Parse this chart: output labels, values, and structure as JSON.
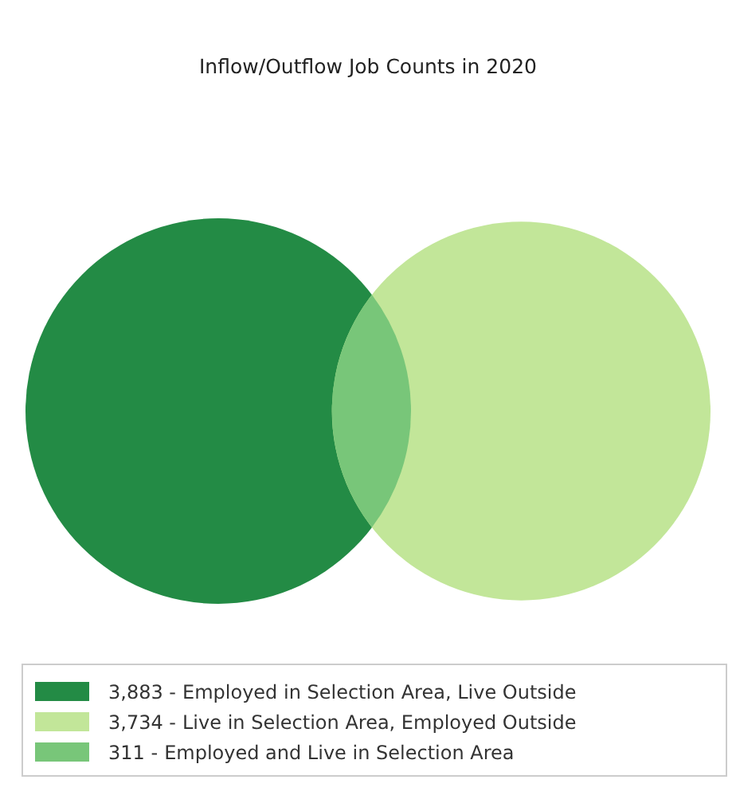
{
  "chart_data": {
    "type": "other",
    "title": "Inflow/Outflow Job Counts in 2020",
    "categories": [
      "Employed in Selection Area, Live Outside",
      "Live in Selection Area, Employed Outside",
      "Employed and Live in Selection Area"
    ],
    "values": [
      3883,
      3734,
      311
    ],
    "value_labels": [
      "3,883 -",
      "3,734 -",
      "311 -"
    ],
    "colors": [
      "#238b45",
      "#c2e699",
      "#78c679"
    ]
  }
}
